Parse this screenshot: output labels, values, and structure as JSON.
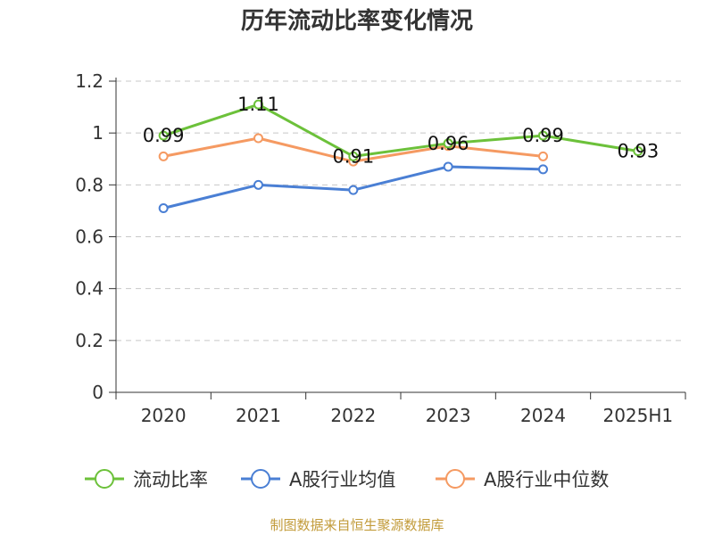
{
  "chart_data": {
    "type": "line",
    "title": "历年流动比率变化情况",
    "categories": [
      "2020",
      "2021",
      "2022",
      "2023",
      "2024",
      "2025H1"
    ],
    "ylim": [
      0,
      1.2
    ],
    "yticks": [
      "0",
      "0.2",
      "0.4",
      "0.6",
      "0.8",
      "1",
      "1.2"
    ],
    "grid": true,
    "legend_position": "bottom",
    "series": [
      {
        "name": "流动比率",
        "color": "#6cc13a",
        "values": [
          0.99,
          1.11,
          0.91,
          0.96,
          0.99,
          0.93
        ],
        "labels": [
          "0.99",
          "1.11",
          "0.91",
          "0.96",
          "0.99",
          "0.93"
        ]
      },
      {
        "name": "A股行业均值",
        "color": "#4a7fd4",
        "values": [
          0.71,
          0.8,
          0.78,
          0.87,
          0.86,
          null
        ]
      },
      {
        "name": "A股行业中位数",
        "color": "#f59a62",
        "values": [
          0.91,
          0.98,
          0.89,
          0.95,
          0.91,
          null
        ]
      }
    ]
  },
  "source": "制图数据来自恒生聚源数据库"
}
